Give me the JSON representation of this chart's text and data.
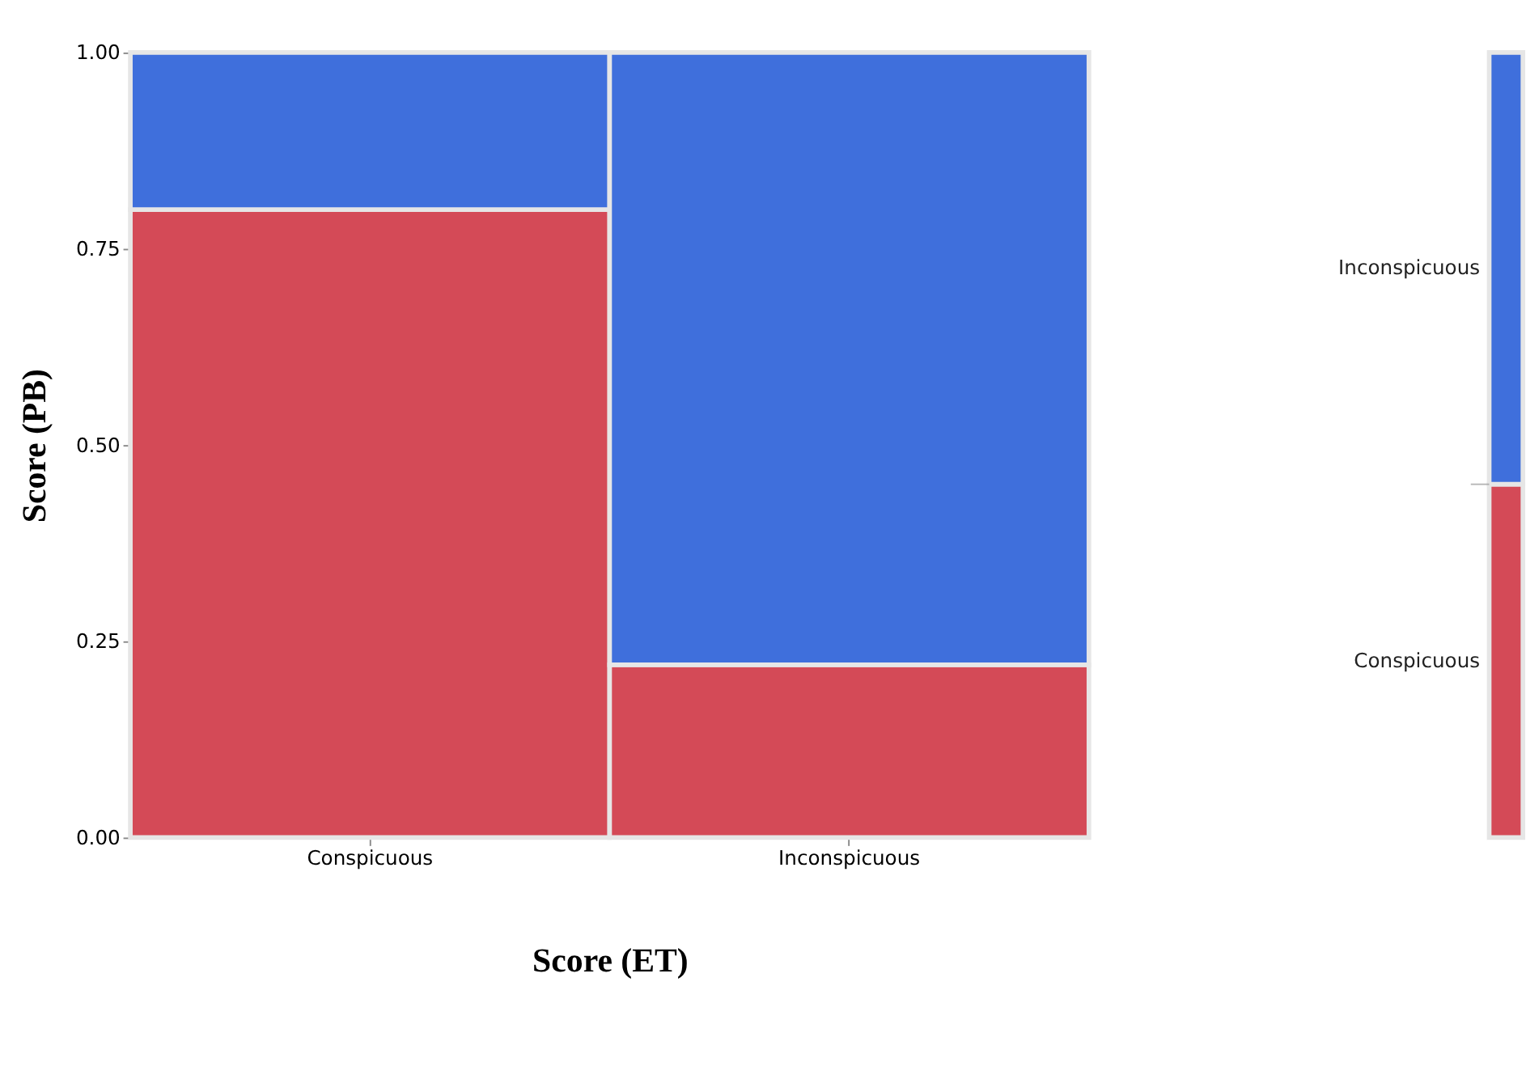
{
  "chart_data": [
    {
      "type": "bar",
      "stacked": true,
      "xlabel": "Score (ET)",
      "ylabel": "Score (PB)",
      "categories": [
        "Conspicuous",
        "Inconspicuous"
      ],
      "ylim": [
        0,
        1
      ],
      "yticks": [
        {
          "value": 0,
          "label": "0.00"
        },
        {
          "value": 0.25,
          "label": "0.25"
        },
        {
          "value": 0.5,
          "label": "0.50"
        },
        {
          "value": 0.75,
          "label": "0.75"
        },
        {
          "value": 1,
          "label": "1.00"
        }
      ],
      "series": [
        {
          "color": "#d44a57",
          "values": [
            0.8,
            0.22
          ]
        },
        {
          "color": "#3f6fdc",
          "values": [
            0.2,
            0.78
          ]
        }
      ]
    },
    {
      "type": "bar",
      "stacked": true,
      "categories": [
        null
      ],
      "ylim": [
        0,
        1
      ],
      "tick_labels": false,
      "series": [
        {
          "name": "Conspicuous",
          "color": "#d44a57",
          "values": [
            0.45
          ]
        },
        {
          "name": "Inconspicuous",
          "color": "#3f6fdc",
          "values": [
            0.55
          ]
        }
      ]
    }
  ]
}
